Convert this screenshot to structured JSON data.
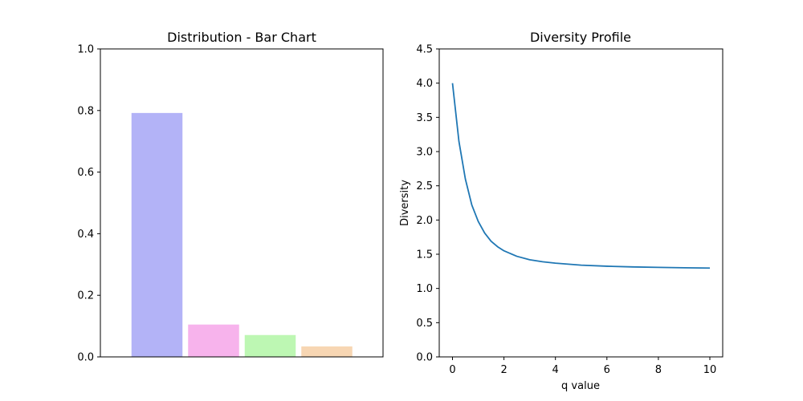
{
  "chart_data": [
    {
      "type": "bar",
      "title": "Distribution - Bar Chart",
      "xlabel": "",
      "ylabel": "",
      "categories": [
        "",
        "",
        "",
        ""
      ],
      "values": [
        0.792,
        0.105,
        0.071,
        0.034
      ],
      "colors": [
        "#b3b3f7",
        "#f7b3ec",
        "#bdf7b3",
        "#f7d6b3"
      ],
      "ylim": [
        0,
        1.0
      ],
      "yticks": [
        "0.0",
        "0.2",
        "0.4",
        "0.6",
        "0.8",
        "1.0"
      ],
      "grid": false,
      "legend": "none"
    },
    {
      "type": "line",
      "title": "Diversity Profile",
      "xlabel": "q value",
      "ylabel": "Diversity",
      "xlim": [
        0,
        10
      ],
      "ylim": [
        0,
        4.5
      ],
      "xticks": [
        "0",
        "2",
        "4",
        "6",
        "8",
        "10"
      ],
      "yticks": [
        "0.0",
        "0.5",
        "1.0",
        "1.5",
        "2.0",
        "2.5",
        "3.0",
        "3.5",
        "4.0",
        "4.5"
      ],
      "series": [
        {
          "color": "#1f77b4",
          "x": [
            0,
            0.25,
            0.5,
            0.75,
            1.0,
            1.25,
            1.5,
            1.75,
            2.0,
            2.5,
            3.0,
            3.5,
            4.0,
            5.0,
            6.0,
            7.0,
            8.0,
            9.0,
            10.0
          ],
          "y": [
            4.0,
            3.15,
            2.6,
            2.22,
            1.98,
            1.81,
            1.69,
            1.61,
            1.55,
            1.47,
            1.42,
            1.39,
            1.37,
            1.34,
            1.325,
            1.315,
            1.308,
            1.302,
            1.298
          ]
        }
      ],
      "grid": false,
      "legend": "none"
    }
  ]
}
